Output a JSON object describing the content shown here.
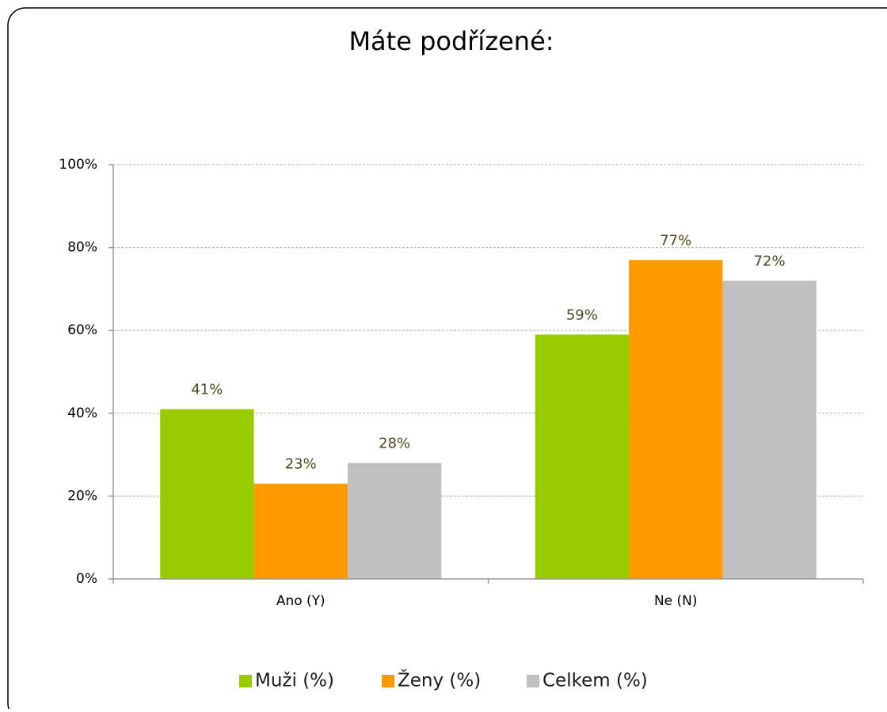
{
  "chart_data": {
    "type": "bar",
    "title": "Máte podřízené:",
    "categories": [
      "Ano (Y)",
      "Ne (N)"
    ],
    "series": [
      {
        "name": "Muži (%)",
        "color": "#99cc00",
        "values": [
          41,
          59
        ],
        "value_labels": [
          "41%",
          "59%"
        ]
      },
      {
        "name": "Ženy (%)",
        "color": "#ff9900",
        "values": [
          23,
          77
        ],
        "value_labels": [
          "23%",
          "77%"
        ]
      },
      {
        "name": "Celkem (%)",
        "color": "#c0c0c0",
        "values": [
          28,
          72
        ],
        "value_labels": [
          "28%",
          "72%"
        ]
      }
    ],
    "ylim": [
      0,
      100
    ],
    "yticks": [
      {
        "value": 0,
        "label": "0%"
      },
      {
        "value": 20,
        "label": "20%"
      },
      {
        "value": 40,
        "label": "40%"
      },
      {
        "value": 60,
        "label": "60%"
      },
      {
        "value": 80,
        "label": "80%"
      },
      {
        "value": 100,
        "label": "100%"
      }
    ],
    "grid": true,
    "legend": "bottom"
  }
}
